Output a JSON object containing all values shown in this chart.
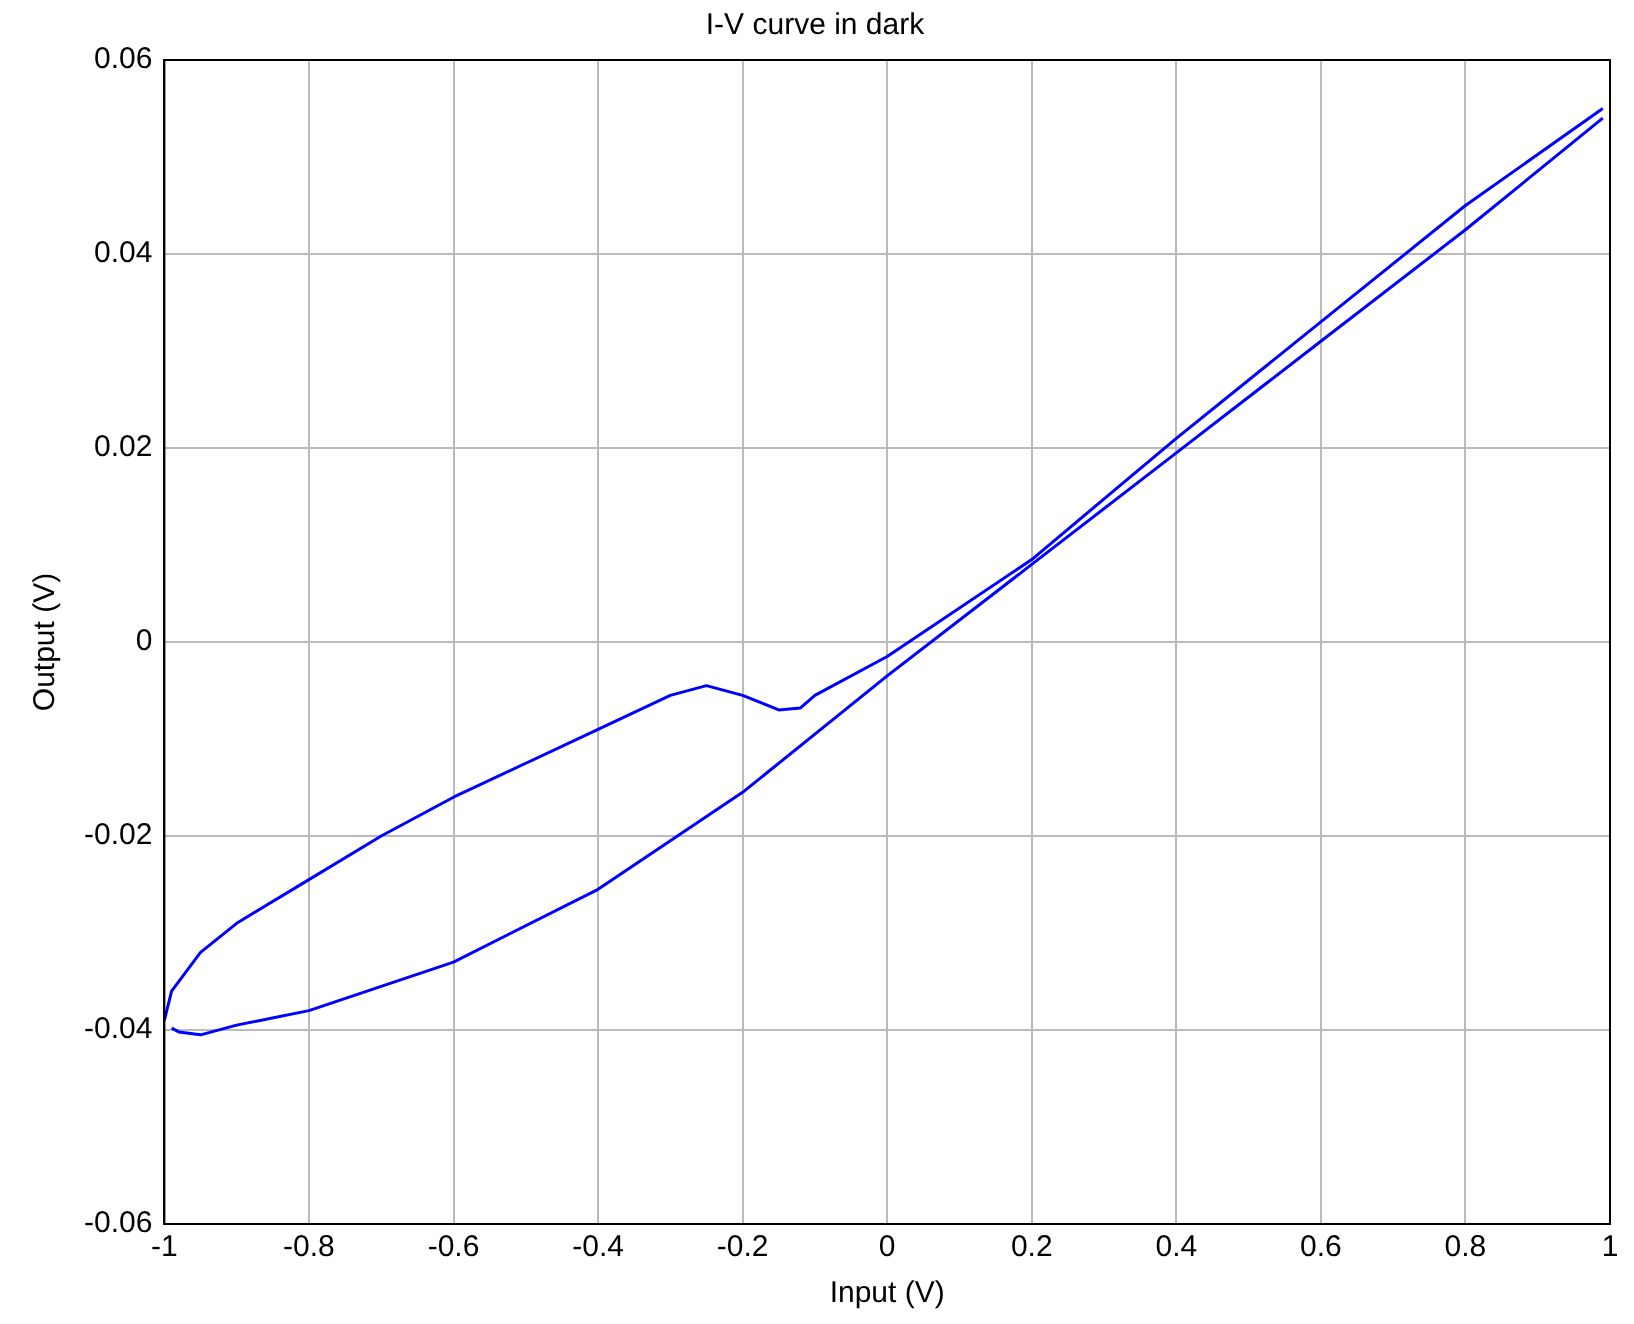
{
  "chart_data": {
    "type": "line",
    "title": "I-V curve in dark",
    "xlabel": "Input (V)",
    "ylabel": "Output (V)",
    "xlim": [
      -1,
      1
    ],
    "xticks": [
      -1,
      -0.8,
      -0.6,
      -0.4,
      -0.2,
      0,
      0.2,
      0.4,
      0.6,
      0.8,
      1
    ],
    "ylim": [
      -0.06,
      0.06
    ],
    "yticks": [
      -0.06,
      -0.04,
      -0.02,
      0,
      0.02,
      0.04,
      0.06
    ],
    "grid": true,
    "marker": "none",
    "line_style": "solid",
    "legend": false,
    "series": [
      {
        "color": "#0000ff",
        "x": [
          -1,
          -0.99,
          -0.95,
          -0.9,
          -0.8,
          -0.7,
          -0.6,
          -0.5,
          -0.4,
          -0.3,
          -0.25,
          -0.2,
          -0.15,
          -0.12,
          -0.1,
          0,
          0.2,
          0.4,
          0.6,
          0.8,
          0.99
        ],
        "values": [
          -0.039,
          -0.036,
          -0.032,
          -0.029,
          -0.0245,
          -0.02,
          -0.016,
          -0.0125,
          -0.009,
          -0.0055,
          -0.0045,
          -0.0055,
          -0.007,
          -0.0068,
          -0.0055,
          -0.0015,
          0.0085,
          0.021,
          0.033,
          0.045,
          0.055
        ]
      },
      {
        "color": "#0000ff",
        "x": [
          -0.99,
          -0.98,
          -0.95,
          -0.9,
          -0.8,
          -0.6,
          -0.4,
          -0.2,
          0,
          0.2,
          0.4,
          0.6,
          0.8,
          0.99
        ],
        "values": [
          -0.0398,
          -0.0402,
          -0.0405,
          -0.0395,
          -0.038,
          -0.033,
          -0.0255,
          -0.0155,
          -0.0035,
          0.008,
          0.0195,
          0.031,
          0.0425,
          0.054
        ]
      }
    ]
  }
}
